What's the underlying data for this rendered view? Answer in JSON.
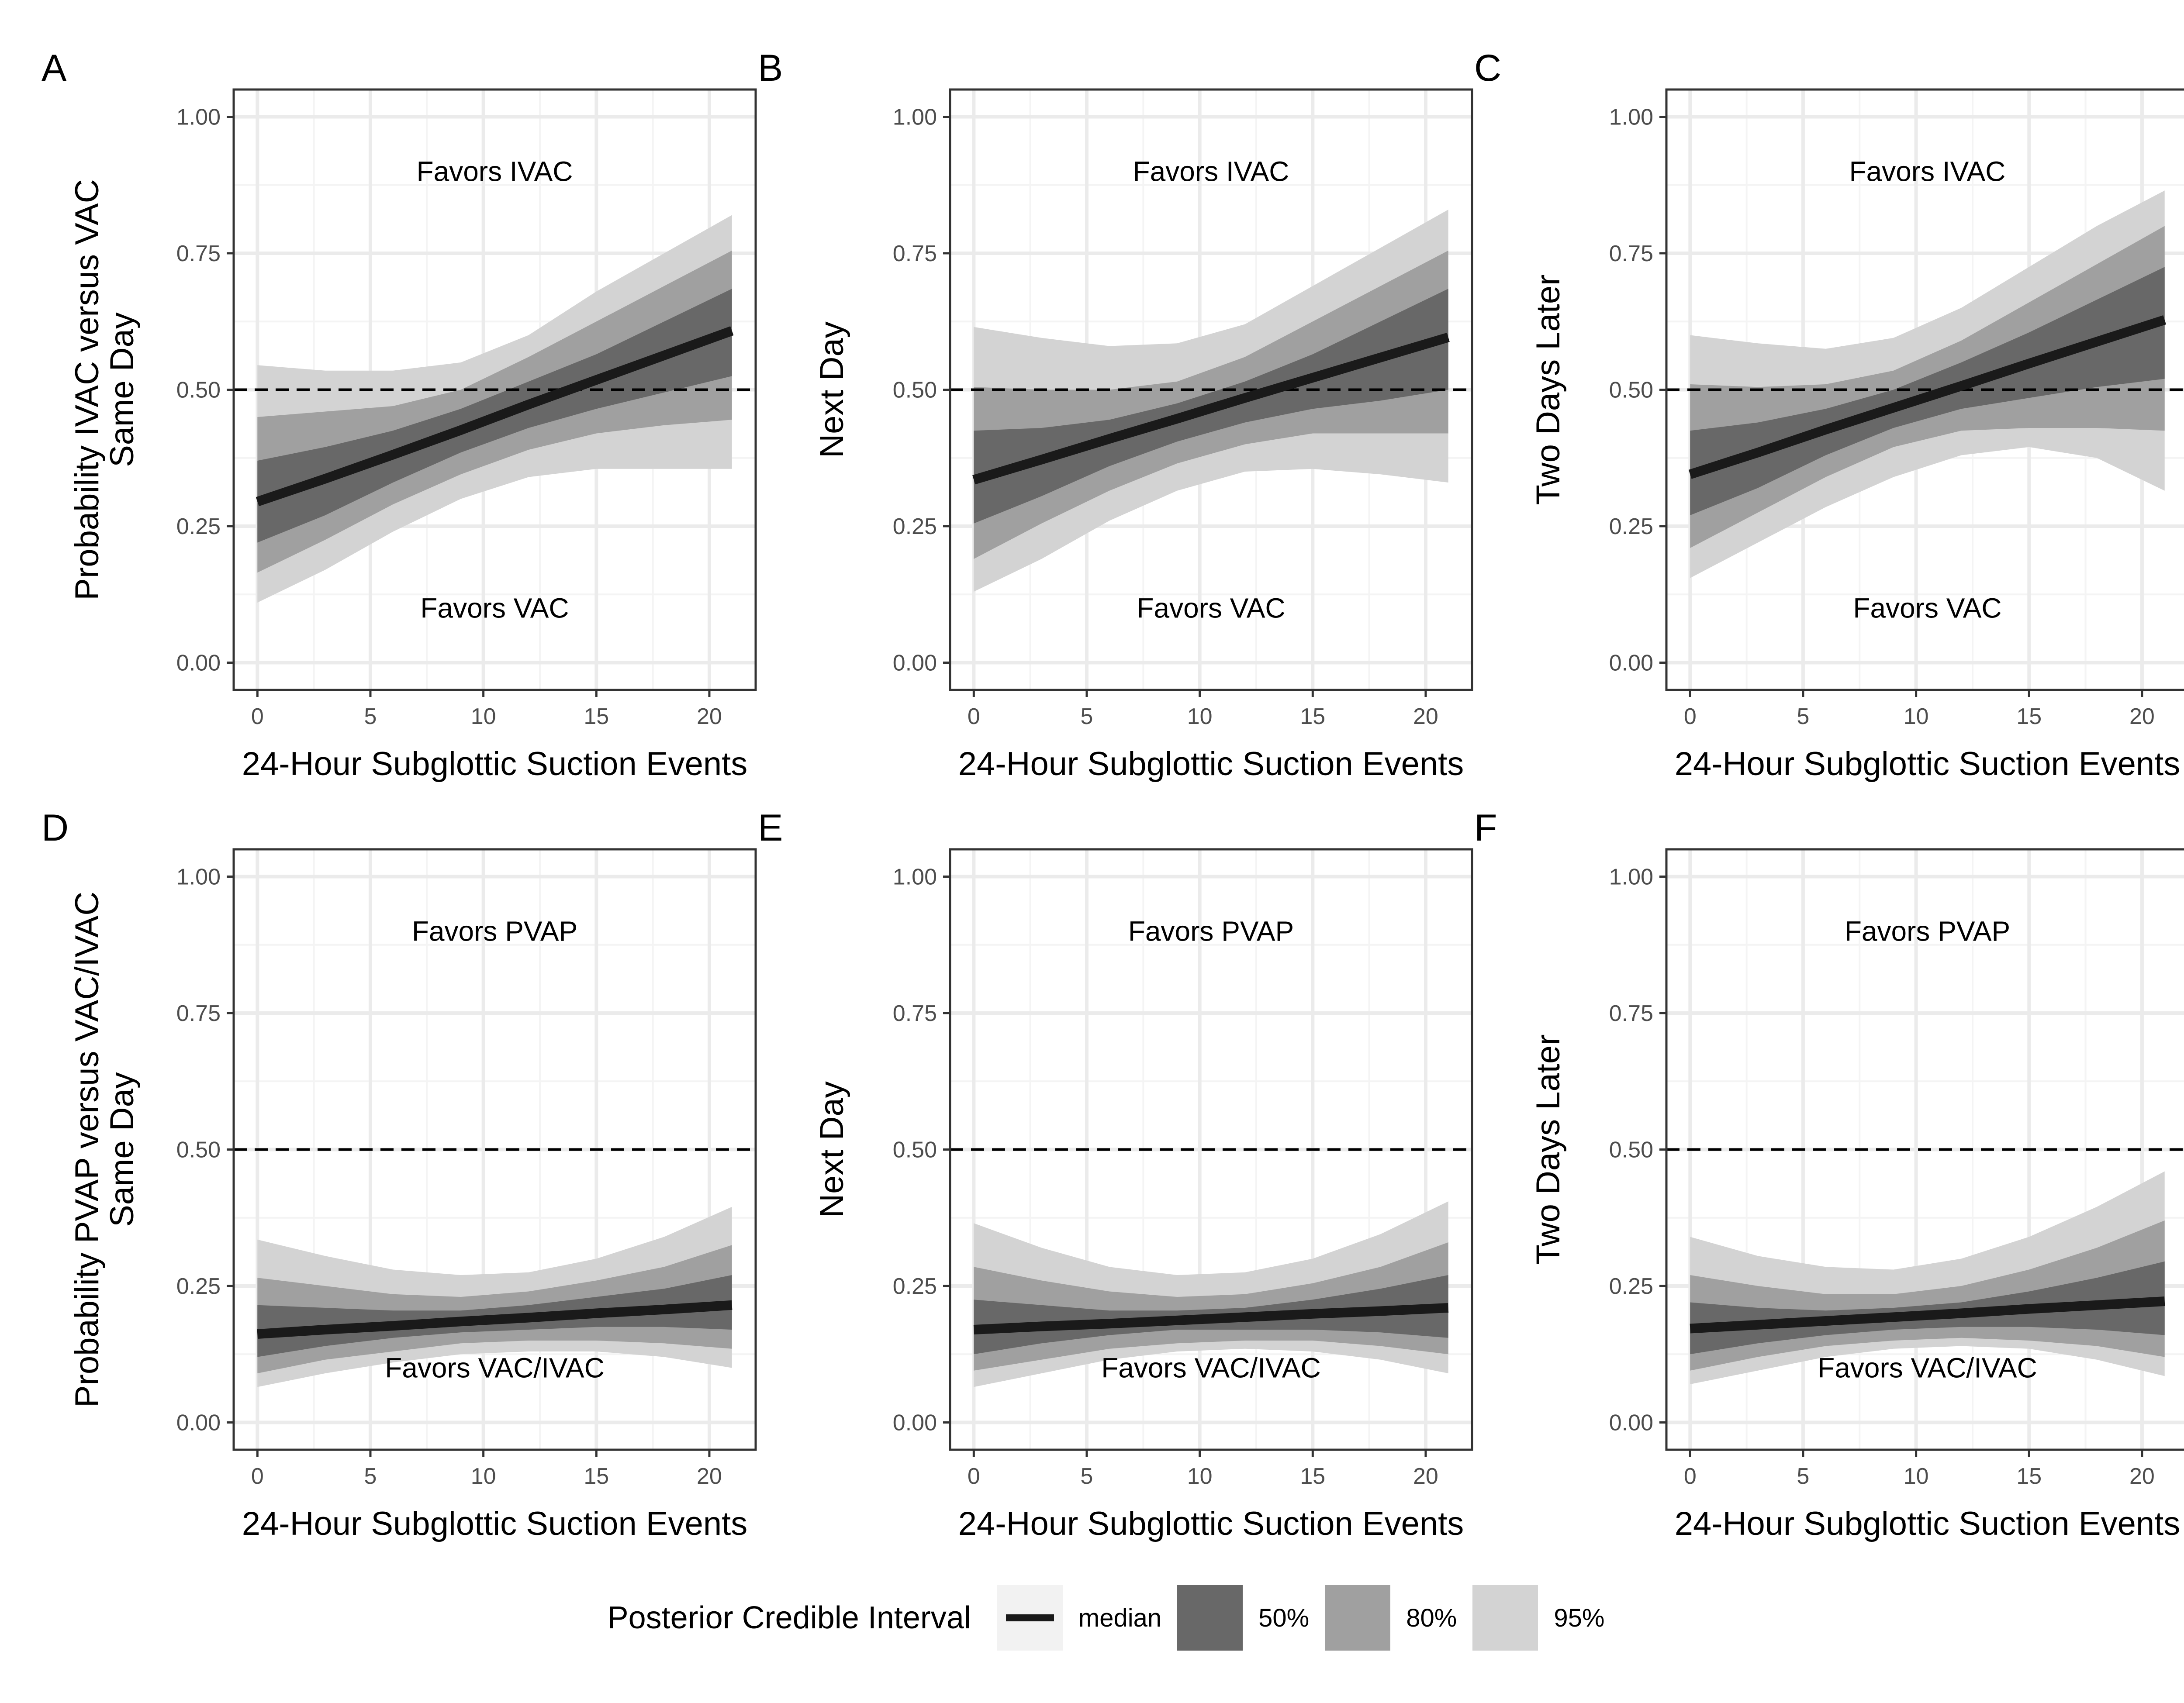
{
  "colors": {
    "band95": "#d3d3d3",
    "band80": "#a0a0a0",
    "band50": "#686868",
    "median": "#1a1a1a",
    "grid_major": "#ebebeb",
    "grid_minor": "#f4f4f4",
    "axis_text": "#4d4d4d"
  },
  "chart_data": [
    {
      "panel": "A",
      "type": "line",
      "ylabel": [
        "Probability IVAC versus VAC",
        "Same Day"
      ],
      "xlabel": "24-Hour Subglottic Suction Events",
      "xlim": [
        0,
        21
      ],
      "ylim": [
        0,
        1
      ],
      "x_ticks": [
        0,
        5,
        10,
        15,
        20
      ],
      "y_ticks": [
        "0.00",
        "0.25",
        "0.50",
        "0.75",
        "1.00"
      ],
      "reference_line": 0.5,
      "annotation_top": "Favors IVAC",
      "annotation_bottom": "Favors VAC",
      "x": [
        0,
        3,
        6,
        9,
        12,
        15,
        18,
        21
      ],
      "median": [
        0.295,
        0.337,
        0.381,
        0.426,
        0.473,
        0.518,
        0.563,
        0.608
      ],
      "lo95": [
        0.11,
        0.17,
        0.24,
        0.3,
        0.34,
        0.355,
        0.355,
        0.355
      ],
      "hi95": [
        0.545,
        0.535,
        0.535,
        0.55,
        0.6,
        0.68,
        0.75,
        0.82
      ],
      "lo80": [
        0.165,
        0.225,
        0.29,
        0.345,
        0.39,
        0.42,
        0.435,
        0.445
      ],
      "hi80": [
        0.45,
        0.46,
        0.47,
        0.5,
        0.56,
        0.625,
        0.69,
        0.755
      ],
      "lo50": [
        0.22,
        0.27,
        0.33,
        0.385,
        0.43,
        0.465,
        0.495,
        0.525
      ],
      "hi50": [
        0.37,
        0.395,
        0.425,
        0.465,
        0.515,
        0.565,
        0.625,
        0.685
      ]
    },
    {
      "panel": "B",
      "type": "line",
      "ylabel": [
        "Next Day"
      ],
      "xlabel": "24-Hour Subglottic Suction Events",
      "xlim": [
        0,
        21
      ],
      "ylim": [
        0,
        1
      ],
      "x_ticks": [
        0,
        5,
        10,
        15,
        20
      ],
      "y_ticks": [
        "0.00",
        "0.25",
        "0.50",
        "0.75",
        "1.00"
      ],
      "reference_line": 0.5,
      "annotation_top": "Favors IVAC",
      "annotation_bottom": "Favors VAC",
      "x": [
        0,
        3,
        6,
        9,
        12,
        15,
        18,
        21
      ],
      "median": [
        0.335,
        0.372,
        0.41,
        0.447,
        0.485,
        0.522,
        0.559,
        0.596
      ],
      "lo95": [
        0.13,
        0.19,
        0.26,
        0.315,
        0.35,
        0.355,
        0.345,
        0.33
      ],
      "hi95": [
        0.615,
        0.595,
        0.58,
        0.585,
        0.62,
        0.69,
        0.76,
        0.83
      ],
      "lo80": [
        0.19,
        0.255,
        0.315,
        0.365,
        0.4,
        0.42,
        0.42,
        0.42
      ],
      "hi80": [
        0.505,
        0.5,
        0.5,
        0.515,
        0.56,
        0.625,
        0.69,
        0.755
      ],
      "lo50": [
        0.255,
        0.305,
        0.36,
        0.405,
        0.44,
        0.465,
        0.48,
        0.5
      ],
      "hi50": [
        0.425,
        0.43,
        0.445,
        0.475,
        0.515,
        0.565,
        0.625,
        0.685
      ]
    },
    {
      "panel": "C",
      "type": "line",
      "ylabel": [
        "Two Days Later"
      ],
      "xlabel": "24-Hour Subglottic Suction Events",
      "xlim": [
        0,
        21
      ],
      "ylim": [
        0,
        1
      ],
      "x_ticks": [
        0,
        5,
        10,
        15,
        20
      ],
      "y_ticks": [
        "0.00",
        "0.25",
        "0.50",
        "0.75",
        "1.00"
      ],
      "reference_line": 0.5,
      "annotation_top": "Favors IVAC",
      "annotation_bottom": "Favors VAC",
      "x": [
        0,
        3,
        6,
        9,
        12,
        15,
        18,
        21
      ],
      "median": [
        0.345,
        0.385,
        0.427,
        0.467,
        0.507,
        0.548,
        0.588,
        0.628
      ],
      "lo95": [
        0.155,
        0.22,
        0.285,
        0.34,
        0.38,
        0.395,
        0.375,
        0.315
      ],
      "hi95": [
        0.6,
        0.585,
        0.575,
        0.595,
        0.65,
        0.725,
        0.8,
        0.865
      ],
      "lo80": [
        0.21,
        0.275,
        0.34,
        0.395,
        0.425,
        0.43,
        0.43,
        0.425
      ],
      "hi80": [
        0.51,
        0.505,
        0.51,
        0.535,
        0.59,
        0.66,
        0.73,
        0.8
      ],
      "lo50": [
        0.27,
        0.32,
        0.38,
        0.43,
        0.465,
        0.485,
        0.505,
        0.52
      ],
      "hi50": [
        0.425,
        0.44,
        0.465,
        0.5,
        0.55,
        0.605,
        0.665,
        0.725
      ]
    },
    {
      "panel": "D",
      "type": "line",
      "ylabel": [
        "Probability PVAP versus VAC/IVAC",
        "Same Day"
      ],
      "xlabel": "24-Hour Subglottic Suction Events",
      "xlim": [
        0,
        21
      ],
      "ylim": [
        0,
        1
      ],
      "x_ticks": [
        0,
        5,
        10,
        15,
        20
      ],
      "y_ticks": [
        "0.00",
        "0.25",
        "0.50",
        "0.75",
        "1.00"
      ],
      "reference_line": 0.5,
      "annotation_top": "Favors PVAP",
      "annotation_bottom": "Favors VAC/IVAC",
      "x": [
        0,
        3,
        6,
        9,
        12,
        15,
        18,
        21
      ],
      "median": [
        0.162,
        0.17,
        0.177,
        0.185,
        0.192,
        0.2,
        0.207,
        0.215
      ],
      "lo95": [
        0.065,
        0.09,
        0.11,
        0.125,
        0.13,
        0.13,
        0.12,
        0.1
      ],
      "hi95": [
        0.335,
        0.305,
        0.28,
        0.27,
        0.275,
        0.3,
        0.34,
        0.395
      ],
      "lo80": [
        0.09,
        0.115,
        0.13,
        0.145,
        0.15,
        0.15,
        0.145,
        0.135
      ],
      "hi80": [
        0.265,
        0.25,
        0.235,
        0.23,
        0.24,
        0.26,
        0.285,
        0.325
      ],
      "lo50": [
        0.12,
        0.14,
        0.155,
        0.165,
        0.17,
        0.175,
        0.175,
        0.17
      ],
      "hi50": [
        0.215,
        0.21,
        0.205,
        0.205,
        0.215,
        0.23,
        0.245,
        0.27
      ]
    },
    {
      "panel": "E",
      "type": "line",
      "ylabel": [
        "Next Day"
      ],
      "xlabel": "24-Hour Subglottic Suction Events",
      "xlim": [
        0,
        21
      ],
      "ylim": [
        0,
        1
      ],
      "x_ticks": [
        0,
        5,
        10,
        15,
        20
      ],
      "y_ticks": [
        "0.00",
        "0.25",
        "0.50",
        "0.75",
        "1.00"
      ],
      "reference_line": 0.5,
      "annotation_top": "Favors PVAP",
      "annotation_bottom": "Favors VAC/IVAC",
      "x": [
        0,
        3,
        6,
        9,
        12,
        15,
        18,
        21
      ],
      "median": [
        0.17,
        0.176,
        0.181,
        0.187,
        0.193,
        0.199,
        0.204,
        0.21
      ],
      "lo95": [
        0.065,
        0.09,
        0.115,
        0.13,
        0.135,
        0.13,
        0.115,
        0.09
      ],
      "hi95": [
        0.365,
        0.32,
        0.285,
        0.27,
        0.275,
        0.3,
        0.345,
        0.405
      ],
      "lo80": [
        0.095,
        0.115,
        0.135,
        0.145,
        0.15,
        0.15,
        0.14,
        0.125
      ],
      "hi80": [
        0.285,
        0.26,
        0.24,
        0.23,
        0.235,
        0.255,
        0.285,
        0.33
      ],
      "lo50": [
        0.125,
        0.145,
        0.16,
        0.17,
        0.17,
        0.17,
        0.165,
        0.155
      ],
      "hi50": [
        0.225,
        0.215,
        0.205,
        0.205,
        0.21,
        0.225,
        0.245,
        0.27
      ]
    },
    {
      "panel": "F",
      "type": "line",
      "ylabel": [
        "Two Days Later"
      ],
      "xlabel": "24-Hour Subglottic Suction Events",
      "xlim": [
        0,
        21
      ],
      "ylim": [
        0,
        1
      ],
      "x_ticks": [
        0,
        5,
        10,
        15,
        20
      ],
      "y_ticks": [
        "0.00",
        "0.25",
        "0.50",
        "0.75",
        "1.00"
      ],
      "reference_line": 0.5,
      "annotation_top": "Favors PVAP",
      "annotation_bottom": "Favors VAC/IVAC",
      "x": [
        0,
        3,
        6,
        9,
        12,
        15,
        18,
        21
      ],
      "median": [
        0.172,
        0.179,
        0.186,
        0.193,
        0.2,
        0.208,
        0.215,
        0.222
      ],
      "lo95": [
        0.07,
        0.095,
        0.12,
        0.135,
        0.14,
        0.135,
        0.115,
        0.085
      ],
      "hi95": [
        0.34,
        0.305,
        0.285,
        0.28,
        0.3,
        0.34,
        0.395,
        0.46
      ],
      "lo80": [
        0.095,
        0.12,
        0.14,
        0.15,
        0.155,
        0.15,
        0.14,
        0.12
      ],
      "hi80": [
        0.27,
        0.25,
        0.235,
        0.235,
        0.25,
        0.28,
        0.32,
        0.37
      ],
      "lo50": [
        0.125,
        0.145,
        0.16,
        0.17,
        0.175,
        0.175,
        0.17,
        0.16
      ],
      "hi50": [
        0.22,
        0.21,
        0.205,
        0.21,
        0.22,
        0.24,
        0.265,
        0.295
      ]
    }
  ],
  "legend": {
    "title": "Posterior Credible Interval",
    "items": [
      {
        "key": "median",
        "label": "median"
      },
      {
        "key": "band50",
        "label": "50%"
      },
      {
        "key": "band80",
        "label": "80%"
      },
      {
        "key": "band95",
        "label": "95%"
      }
    ]
  }
}
